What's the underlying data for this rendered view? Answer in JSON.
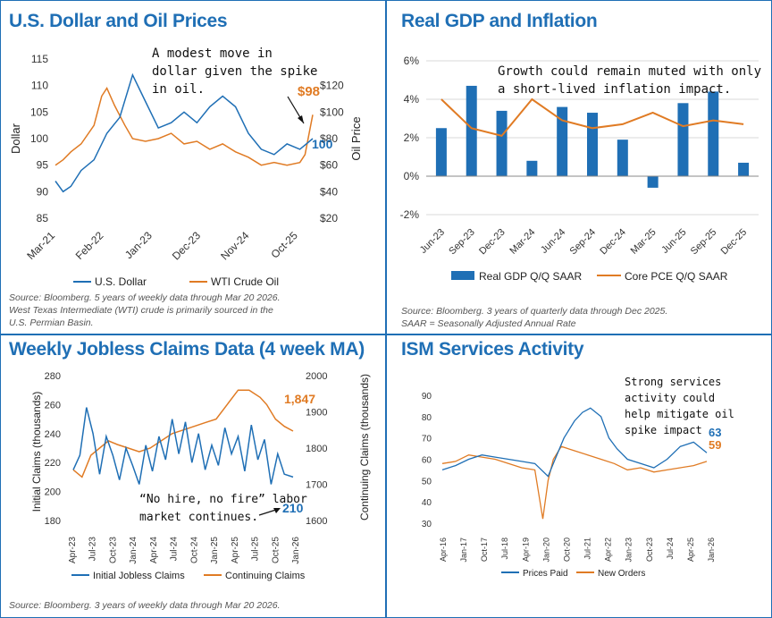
{
  "colors": {
    "blue": "#1f6fb5",
    "orange": "#e07b24",
    "gray": "#d9d9d9",
    "text": "#222222"
  },
  "panels": {
    "usd_oil": {
      "title": "U.S. Dollar and Oil Prices",
      "source_lines": [
        "Source: Bloomberg. 5 years of weekly data through Mar 20 2026.",
        "West Texas Intermediate (WTI) crude is primarily sourced in the",
        "U.S. Permian Basin."
      ]
    },
    "gdp": {
      "title": "Real GDP and Inflation",
      "source_lines": [
        "Source: Bloomberg. 3 years of quarterly data through Dec 2025.",
        "SAAR = Seasonally Adjusted Annual Rate"
      ]
    },
    "jobless": {
      "title": "Weekly Jobless Claims Data (4 week MA)",
      "source_lines": [
        "Source: Bloomberg. 3 years of weekly data through Mar 20 2026."
      ]
    },
    "ism": {
      "title": "ISM Services Activity"
    }
  },
  "chart_data": [
    {
      "id": "usd_oil",
      "type": "line",
      "title": "U.S. Dollar and Oil Prices",
      "ylabel": "Dollar",
      "y2label": "Oil Price",
      "ylim": [
        85,
        115
      ],
      "yticks": [
        "85",
        "90",
        "95",
        "100",
        "105",
        "110",
        "115"
      ],
      "y2lim": [
        20,
        140
      ],
      "y2ticks": [
        "$20",
        "$40",
        "$60",
        "$80",
        "$100",
        "$120"
      ],
      "x_tick_labels": [
        "Mar-21",
        "Feb-22",
        "Jan-23",
        "Dec-23",
        "Nov-24",
        "Oct-25"
      ],
      "annotation": [
        "A modest move in",
        "dollar given the spike",
        "in oil."
      ],
      "end_labels": {
        "oil": "$98",
        "dollar": "100"
      },
      "series": [
        {
          "name": "U.S. Dollar",
          "axis": "left",
          "x": [
            0,
            0.03,
            0.06,
            0.1,
            0.15,
            0.2,
            0.25,
            0.3,
            0.35,
            0.4,
            0.45,
            0.5,
            0.55,
            0.6,
            0.65,
            0.7,
            0.75,
            0.8,
            0.85,
            0.9,
            0.95,
            1.0
          ],
          "values": [
            92,
            90,
            91,
            94,
            96,
            101,
            104,
            112,
            107,
            102,
            103,
            105,
            103,
            106,
            108,
            106,
            101,
            98,
            97,
            99,
            98,
            100
          ]
        },
        {
          "name": "WTI Crude Oil",
          "axis": "right",
          "x": [
            0,
            0.03,
            0.06,
            0.1,
            0.15,
            0.18,
            0.2,
            0.23,
            0.27,
            0.3,
            0.35,
            0.4,
            0.45,
            0.5,
            0.55,
            0.6,
            0.65,
            0.7,
            0.75,
            0.8,
            0.85,
            0.9,
            0.95,
            0.97,
            1.0
          ],
          "values": [
            60,
            64,
            70,
            76,
            90,
            112,
            118,
            105,
            90,
            80,
            78,
            80,
            84,
            76,
            78,
            72,
            76,
            70,
            66,
            60,
            62,
            60,
            62,
            68,
            98
          ]
        }
      ]
    },
    {
      "id": "gdp",
      "type": "bar",
      "title": "Real GDP and Inflation",
      "annotation": [
        "Growth could remain muted with only",
        "a short-lived inflation impact."
      ],
      "categories": [
        "Jun-23",
        "Sep-23",
        "Dec-23",
        "Mar-24",
        "Jun-24",
        "Sep-24",
        "Dec-24",
        "Mar-25",
        "Jun-25",
        "Sep-25",
        "Dec-25"
      ],
      "ylim": [
        -2,
        6
      ],
      "yticks": [
        "-2%",
        "0%",
        "2%",
        "4%",
        "6%"
      ],
      "series": [
        {
          "name": "Real GDP Q/Q SAAR",
          "values": [
            2.5,
            4.7,
            3.4,
            0.8,
            3.6,
            3.3,
            1.9,
            -0.6,
            3.8,
            4.4,
            0.7
          ]
        },
        {
          "name": "Core PCE Q/Q SAAR",
          "values": [
            4.0,
            2.5,
            2.1,
            4.0,
            2.9,
            2.5,
            2.7,
            3.3,
            2.6,
            2.9,
            2.7
          ]
        }
      ]
    },
    {
      "id": "jobless",
      "type": "line",
      "title": "Weekly Jobless Claims Data (4 week MA)",
      "ylabel": "Initial Claims (thousands)",
      "y2label": "Continuing Claims (thousands)",
      "ylim": [
        180,
        280
      ],
      "yticks": [
        "180",
        "200",
        "220",
        "240",
        "260",
        "280"
      ],
      "y2lim": [
        1600,
        2000
      ],
      "y2ticks": [
        "1600",
        "1700",
        "1800",
        "1900",
        "2000"
      ],
      "x_tick_labels": [
        "Apr-23",
        "Jul-23",
        "Oct-23",
        "Jan-24",
        "Apr-24",
        "Jul-24",
        "Oct-24",
        "Jan-25",
        "Apr-25",
        "Jul-25",
        "Oct-25",
        "Jan-26"
      ],
      "annotation": [
        "“No hire, no fire” labor",
        "market continues."
      ],
      "end_labels": {
        "continuing": "1,847",
        "initial": "210"
      },
      "series": [
        {
          "name": "Initial Jobless Claims",
          "axis": "left",
          "x": [
            0,
            0.03,
            0.06,
            0.09,
            0.12,
            0.15,
            0.18,
            0.21,
            0.24,
            0.27,
            0.3,
            0.33,
            0.36,
            0.39,
            0.42,
            0.45,
            0.48,
            0.51,
            0.54,
            0.57,
            0.6,
            0.63,
            0.66,
            0.69,
            0.72,
            0.75,
            0.78,
            0.81,
            0.84,
            0.87,
            0.9,
            0.93,
            0.96,
            1.0
          ],
          "values": [
            215,
            225,
            258,
            240,
            212,
            238,
            225,
            208,
            230,
            218,
            205,
            232,
            214,
            238,
            222,
            250,
            226,
            248,
            220,
            240,
            215,
            232,
            218,
            244,
            226,
            238,
            214,
            246,
            222,
            236,
            205,
            226,
            212,
            210
          ]
        },
        {
          "name": "Continuing Claims",
          "axis": "right",
          "x": [
            0,
            0.04,
            0.08,
            0.12,
            0.16,
            0.2,
            0.25,
            0.3,
            0.35,
            0.4,
            0.45,
            0.5,
            0.55,
            0.6,
            0.65,
            0.7,
            0.75,
            0.8,
            0.85,
            0.88,
            0.92,
            0.96,
            1.0
          ],
          "values": [
            1740,
            1720,
            1780,
            1800,
            1820,
            1810,
            1800,
            1790,
            1800,
            1820,
            1840,
            1850,
            1860,
            1870,
            1880,
            1920,
            1960,
            1960,
            1940,
            1920,
            1880,
            1860,
            1847
          ]
        }
      ]
    },
    {
      "id": "ism",
      "type": "line",
      "title": "ISM Services Activity",
      "ylim": [
        30,
        90
      ],
      "yticks": [
        "30",
        "40",
        "50",
        "60",
        "70",
        "80",
        "90"
      ],
      "x_tick_labels": [
        "Apr-16",
        "Jan-17",
        "Oct-17",
        "Jul-18",
        "Apr-19",
        "Jan-20",
        "Oct-20",
        "Jul-21",
        "Apr-22",
        "Jan-23",
        "Oct-23",
        "Jul-24",
        "Apr-25",
        "Jan-26"
      ],
      "annotation": [
        "Strong services",
        "activity could",
        "help mitigate oil",
        "spike impact"
      ],
      "end_labels": {
        "prices": "63",
        "orders": "59"
      },
      "series": [
        {
          "name": "Prices Paid",
          "x": [
            0,
            0.05,
            0.1,
            0.15,
            0.2,
            0.25,
            0.3,
            0.35,
            0.4,
            0.42,
            0.44,
            0.46,
            0.5,
            0.53,
            0.56,
            0.6,
            0.63,
            0.66,
            0.7,
            0.75,
            0.8,
            0.85,
            0.9,
            0.95,
            1.0
          ],
          "values": [
            55,
            57,
            60,
            62,
            61,
            60,
            59,
            58,
            52,
            58,
            64,
            70,
            78,
            82,
            84,
            80,
            70,
            65,
            60,
            58,
            56,
            60,
            66,
            68,
            63
          ]
        },
        {
          "name": "New Orders",
          "x": [
            0,
            0.05,
            0.1,
            0.15,
            0.2,
            0.25,
            0.3,
            0.35,
            0.38,
            0.4,
            0.42,
            0.45,
            0.5,
            0.55,
            0.6,
            0.65,
            0.7,
            0.75,
            0.8,
            0.85,
            0.9,
            0.95,
            1.0
          ],
          "values": [
            58,
            59,
            62,
            61,
            60,
            58,
            56,
            55,
            32,
            50,
            60,
            66,
            64,
            62,
            60,
            58,
            55,
            56,
            54,
            55,
            56,
            57,
            59
          ]
        }
      ]
    }
  ]
}
